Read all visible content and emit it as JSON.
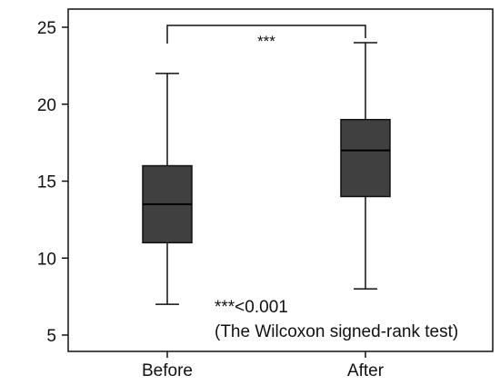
{
  "chart_data": {
    "type": "boxplot",
    "title": "",
    "xlabel": "",
    "ylabel": "",
    "ylim": [
      4.5,
      26
    ],
    "y_ticks": [
      5,
      10,
      15,
      20,
      25
    ],
    "y_tick_labels": [
      "5",
      "10",
      "15",
      "20",
      "25"
    ],
    "grid": false,
    "categories": [
      "Before",
      "After"
    ],
    "boxes": [
      {
        "category": "Before",
        "min": 7,
        "q1": 11,
        "median": 13.5,
        "q3": 16,
        "max": 22
      },
      {
        "category": "After",
        "min": 8,
        "q1": 14,
        "median": 17,
        "q3": 19,
        "max": 24
      }
    ],
    "significance": {
      "between": [
        "Before",
        "After"
      ],
      "label": "***"
    },
    "annotations": [
      "***<0.001",
      "(The Wilcoxon signed-rank test)"
    ],
    "colors": {
      "box_fill": "#404040",
      "line": "#111111"
    }
  }
}
